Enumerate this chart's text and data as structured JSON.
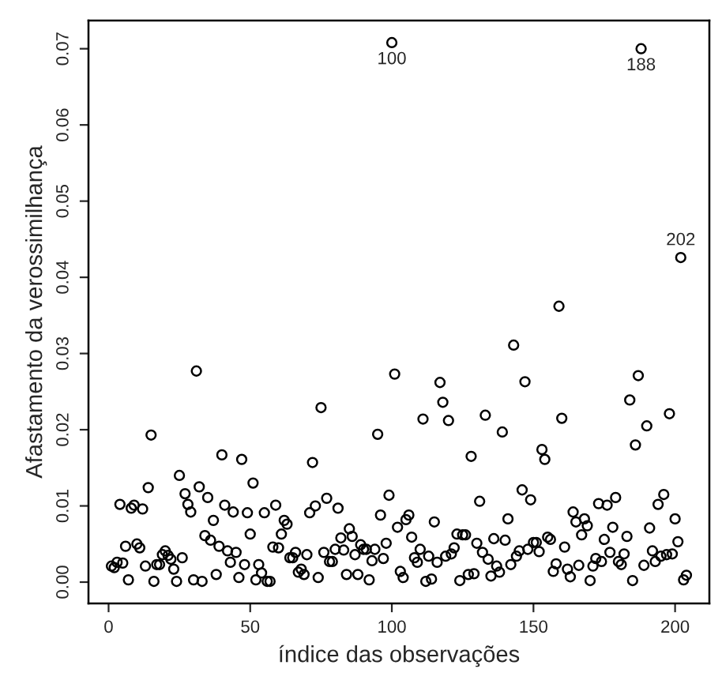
{
  "chart_data": {
    "type": "scatter",
    "xlabel": "índice das observações",
    "ylabel": "Afastamento da verossimilhança",
    "x": [
      1,
      2,
      3,
      4,
      5,
      6,
      7,
      8,
      9,
      10,
      11,
      12,
      13,
      14,
      15,
      16,
      17,
      18,
      19,
      20,
      21,
      22,
      23,
      24,
      25,
      26,
      27,
      28,
      29,
      30,
      31,
      32,
      33,
      34,
      35,
      36,
      37,
      38,
      39,
      40,
      41,
      42,
      43,
      44,
      45,
      46,
      47,
      48,
      49,
      50,
      51,
      52,
      53,
      54,
      55,
      56,
      57,
      58,
      59,
      60,
      61,
      62,
      63,
      64,
      65,
      66,
      67,
      68,
      69,
      70,
      71,
      72,
      73,
      74,
      75,
      76,
      77,
      78,
      79,
      80,
      81,
      82,
      83,
      84,
      85,
      86,
      87,
      88,
      89,
      90,
      91,
      92,
      93,
      94,
      95,
      96,
      97,
      98,
      99,
      100,
      101,
      102,
      103,
      104,
      105,
      106,
      107,
      108,
      109,
      110,
      111,
      112,
      113,
      114,
      115,
      116,
      117,
      118,
      119,
      120,
      121,
      122,
      123,
      124,
      125,
      126,
      127,
      128,
      129,
      130,
      131,
      132,
      133,
      134,
      135,
      136,
      137,
      138,
      139,
      140,
      141,
      142,
      143,
      144,
      145,
      146,
      147,
      148,
      149,
      150,
      151,
      152,
      153,
      154,
      155,
      156,
      157,
      158,
      159,
      160,
      161,
      162,
      163,
      164,
      165,
      166,
      167,
      168,
      169,
      170,
      171,
      172,
      173,
      174,
      175,
      176,
      177,
      178,
      179,
      180,
      181,
      182,
      183,
      184,
      185,
      186,
      187,
      188,
      189,
      190,
      191,
      192,
      193,
      194,
      195,
      196,
      197,
      198,
      199,
      200,
      201,
      202,
      203,
      204
    ],
    "series": [
      {
        "color": "#000000",
        "values": [
          0.0021,
          0.0019,
          0.0026,
          0.0102,
          0.0025,
          0.0047,
          0.0003,
          0.0097,
          0.0101,
          0.005,
          0.0045,
          0.0096,
          0.0021,
          0.0124,
          0.0193,
          0.0001,
          0.0023,
          0.0023,
          0.0036,
          0.0041,
          0.0035,
          0.003,
          0.0017,
          0.0001,
          0.014,
          0.0032,
          0.0116,
          0.0102,
          0.0092,
          0.0003,
          0.0277,
          0.0125,
          0.0001,
          0.0061,
          0.0111,
          0.0055,
          0.0081,
          0.001,
          0.0047,
          0.0167,
          0.0101,
          0.0041,
          0.0026,
          0.0092,
          0.0039,
          0.0006,
          0.0161,
          0.0023,
          0.0091,
          0.0063,
          0.013,
          0.0003,
          0.0023,
          0.0012,
          0.0091,
          0.0001,
          0.0001,
          0.0046,
          0.0101,
          0.0045,
          0.0063,
          0.0081,
          0.0076,
          0.0032,
          0.0032,
          0.0039,
          0.0013,
          0.0017,
          0.001,
          0.0036,
          0.0091,
          0.0157,
          0.01,
          0.0006,
          0.0229,
          0.0039,
          0.011,
          0.0027,
          0.0027,
          0.0043,
          0.0097,
          0.0058,
          0.0042,
          0.001,
          0.007,
          0.006,
          0.0036,
          0.001,
          0.0049,
          0.0043,
          0.0043,
          0.0003,
          0.0028,
          0.0043,
          0.0194,
          0.0088,
          0.0031,
          0.0051,
          0.0114,
          0.0708,
          0.0273,
          0.0072,
          0.0014,
          0.0006,
          0.0082,
          0.0088,
          0.0059,
          0.0032,
          0.0026,
          0.0043,
          0.0214,
          0.0001,
          0.0034,
          0.0004,
          0.0079,
          0.0026,
          0.0262,
          0.0236,
          0.0034,
          0.0212,
          0.0037,
          0.0045,
          0.0063,
          0.0002,
          0.0062,
          0.0062,
          0.001,
          0.0165,
          0.0011,
          0.0051,
          0.0106,
          0.0039,
          0.0219,
          0.003,
          0.0008,
          0.0057,
          0.0021,
          0.0013,
          0.0197,
          0.0055,
          0.0083,
          0.0023,
          0.0311,
          0.0034,
          0.0041,
          0.0121,
          0.0263,
          0.0043,
          0.0108,
          0.0052,
          0.0052,
          0.004,
          0.0174,
          0.0161,
          0.0059,
          0.0056,
          0.0014,
          0.0024,
          0.0362,
          0.0215,
          0.0046,
          0.0017,
          0.0007,
          0.0092,
          0.0079,
          0.0022,
          0.0062,
          0.0083,
          0.0074,
          0.0002,
          0.0021,
          0.0031,
          0.0103,
          0.0027,
          0.0056,
          0.0101,
          0.0039,
          0.0072,
          0.0111,
          0.0027,
          0.0023,
          0.0037,
          0.006,
          0.0239,
          0.0002,
          0.018,
          0.0271,
          0.07,
          0.0022,
          0.0205,
          0.0071,
          0.0041,
          0.0027,
          0.0102,
          0.0034,
          0.0115,
          0.0036,
          0.0221,
          0.0037,
          0.0083,
          0.0053,
          0.0426,
          0.0003,
          0.0009
        ]
      }
    ],
    "annotations": [
      {
        "text": "100",
        "x": 100,
        "y": 0.0708
      },
      {
        "text": "188",
        "x": 188,
        "y": 0.07
      },
      {
        "text": "202",
        "x": 202,
        "y": 0.0426
      }
    ],
    "xlim": [
      -7.1,
      212.1
    ],
    "ylim": [
      -0.0028,
      0.0737
    ],
    "xticks": [
      0,
      50,
      100,
      150,
      200
    ],
    "yticks": [
      {
        "value": 0,
        "label": "0.00"
      },
      {
        "value": 0.01,
        "label": "0.01"
      },
      {
        "value": 0.02,
        "label": "0.02"
      },
      {
        "value": 0.03,
        "label": "0.03"
      },
      {
        "value": 0.04,
        "label": "0.04"
      },
      {
        "value": 0.05,
        "label": "0.05"
      },
      {
        "value": 0.06,
        "label": "0.06"
      },
      {
        "value": 0.07,
        "label": "0.07"
      }
    ],
    "marker": "circle"
  }
}
